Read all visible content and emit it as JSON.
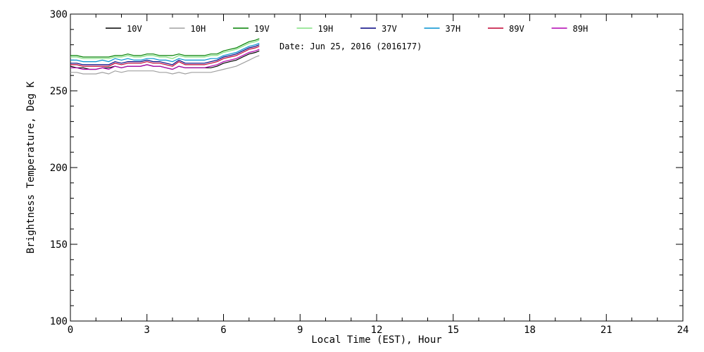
{
  "chart_data": {
    "type": "line",
    "title": "",
    "xlabel": "Local Time (EST), Hour",
    "ylabel": "Brightness Temperature, Deg K",
    "xlim": [
      0,
      24
    ],
    "ylim": [
      100,
      300
    ],
    "xticks": [
      0,
      3,
      6,
      9,
      12,
      15,
      18,
      21,
      24
    ],
    "xtick_labels": [
      "0",
      "3",
      "6",
      "9",
      "12",
      "15",
      "18",
      "21",
      "24"
    ],
    "yticks": [
      100,
      150,
      200,
      250,
      300
    ],
    "ytick_labels": [
      "100",
      "150",
      "200",
      "250",
      "300"
    ],
    "grid": false,
    "legend_position": "top",
    "annotation": "Date: Jun 25, 2016 (2016177)",
    "x": [
      0.0,
      0.25,
      0.5,
      0.75,
      1.0,
      1.25,
      1.5,
      1.75,
      2.0,
      2.25,
      2.5,
      2.75,
      3.0,
      3.25,
      3.5,
      3.75,
      4.0,
      4.25,
      4.5,
      4.75,
      5.0,
      5.25,
      5.5,
      5.75,
      6.0,
      6.25,
      6.5,
      6.75,
      7.0,
      7.25,
      7.4
    ],
    "series": [
      {
        "name": "10V",
        "color": "#000000",
        "values": [
          266,
          265,
          265,
          264,
          264,
          265,
          265,
          266,
          265,
          266,
          266,
          266,
          267,
          266,
          266,
          265,
          264,
          266,
          265,
          265,
          265,
          265,
          265,
          266,
          268,
          269,
          270,
          272,
          274,
          275,
          276
        ]
      },
      {
        "name": "10H",
        "color": "#a0a0a0",
        "values": [
          262,
          262,
          261,
          261,
          261,
          262,
          261,
          263,
          262,
          263,
          263,
          263,
          263,
          263,
          262,
          262,
          261,
          262,
          261,
          262,
          262,
          262,
          262,
          263,
          264,
          265,
          266,
          268,
          270,
          272,
          273
        ]
      },
      {
        "name": "19V",
        "color": "#008000",
        "values": [
          273,
          273,
          272,
          272,
          272,
          272,
          272,
          273,
          273,
          274,
          273,
          273,
          274,
          274,
          273,
          273,
          273,
          274,
          273,
          273,
          273,
          273,
          274,
          274,
          276,
          277,
          278,
          280,
          282,
          283,
          284
        ]
      },
      {
        "name": "19H",
        "color": "#80e080",
        "values": [
          272,
          272,
          271,
          271,
          271,
          271,
          271,
          272,
          272,
          273,
          272,
          272,
          273,
          273,
          272,
          272,
          271,
          273,
          272,
          272,
          272,
          272,
          273,
          273,
          275,
          276,
          277,
          279,
          281,
          282,
          283
        ]
      },
      {
        "name": "37V",
        "color": "#000080",
        "values": [
          268,
          268,
          267,
          267,
          267,
          267,
          267,
          269,
          268,
          269,
          269,
          269,
          270,
          269,
          269,
          268,
          267,
          270,
          268,
          268,
          268,
          268,
          269,
          270,
          272,
          273,
          274,
          276,
          278,
          279,
          280
        ]
      },
      {
        "name": "37H",
        "color": "#0090d0",
        "values": [
          270,
          270,
          269,
          269,
          269,
          270,
          269,
          271,
          270,
          271,
          270,
          270,
          271,
          271,
          270,
          270,
          269,
          271,
          270,
          270,
          270,
          270,
          271,
          271,
          273,
          274,
          275,
          277,
          279,
          280,
          281
        ]
      },
      {
        "name": "89V",
        "color": "#c00030",
        "values": [
          267,
          267,
          266,
          266,
          266,
          266,
          266,
          268,
          267,
          268,
          268,
          268,
          269,
          268,
          268,
          267,
          266,
          269,
          267,
          267,
          267,
          267,
          268,
          269,
          271,
          272,
          273,
          275,
          277,
          278,
          279
        ]
      },
      {
        "name": "89H",
        "color": "#b000b0",
        "values": [
          265,
          265,
          264,
          264,
          264,
          265,
          264,
          266,
          265,
          266,
          266,
          266,
          267,
          266,
          266,
          265,
          264,
          266,
          265,
          265,
          265,
          265,
          266,
          267,
          269,
          270,
          271,
          273,
          275,
          276,
          277
        ]
      }
    ]
  }
}
